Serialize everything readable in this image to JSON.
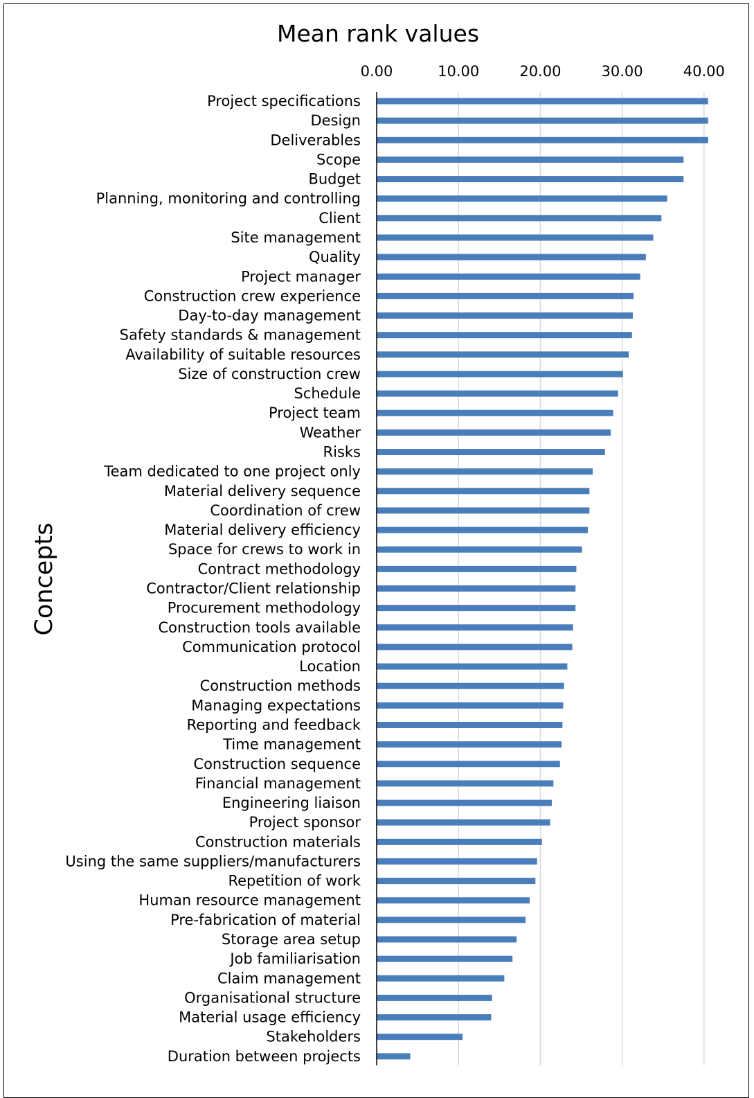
{
  "chart_data": {
    "type": "bar",
    "orientation": "horizontal",
    "title": "Mean rank values",
    "ylabel": "Concepts",
    "xlim": [
      0,
      40
    ],
    "xticks": [
      "0.00",
      "10.00",
      "20.00",
      "30.00",
      "40.00"
    ],
    "xaxis_position": "top",
    "grid": "vertical",
    "legend": "none",
    "bar_color": "#4a7ebb",
    "categories": [
      "Project specifications",
      "Design",
      "Deliverables",
      "Scope",
      "Budget",
      "Planning, monitoring and controlling",
      "Client",
      "Site management",
      "Quality",
      "Project manager",
      "Construction crew experience",
      "Day-to-day management",
      "Safety standards & management",
      "Availability of suitable resources",
      "Size of construction crew",
      "Schedule",
      "Project team",
      "Weather",
      "Risks",
      "Team dedicated to one project only",
      "Material delivery sequence",
      "Coordination of crew",
      "Material delivery efficiency",
      "Space for crews to work in",
      "Contract methodology",
      "Contractor/Client relationship",
      "Procurement methodology",
      "Construction tools available",
      "Communication protocol",
      "Location",
      "Construction methods",
      "Managing expectations",
      "Reporting and feedback",
      "Time management",
      "Construction sequence",
      "Financial management",
      "Engineering liaison",
      "Project sponsor",
      "Construction materials",
      "Using the same suppliers/manufacturers",
      "Repetition of work",
      "Human resource management",
      "Pre-fabrication of material",
      "Storage area setup",
      "Job familiarisation",
      "Claim management",
      "Organisational structure",
      "Material usage efficiency",
      "Stakeholders",
      "Duration between projects"
    ],
    "values": [
      40.5,
      40.5,
      40.5,
      37.5,
      37.5,
      35.5,
      34.8,
      33.8,
      32.9,
      32.2,
      31.4,
      31.3,
      31.2,
      30.8,
      30.1,
      29.5,
      28.9,
      28.6,
      27.9,
      26.4,
      26.0,
      26.0,
      25.8,
      25.1,
      24.4,
      24.3,
      24.3,
      24.0,
      23.9,
      23.3,
      22.9,
      22.8,
      22.7,
      22.6,
      22.4,
      21.6,
      21.4,
      21.2,
      20.2,
      19.6,
      19.4,
      18.7,
      18.2,
      17.1,
      16.6,
      15.6,
      14.1,
      14.0,
      10.5,
      4.1
    ]
  }
}
